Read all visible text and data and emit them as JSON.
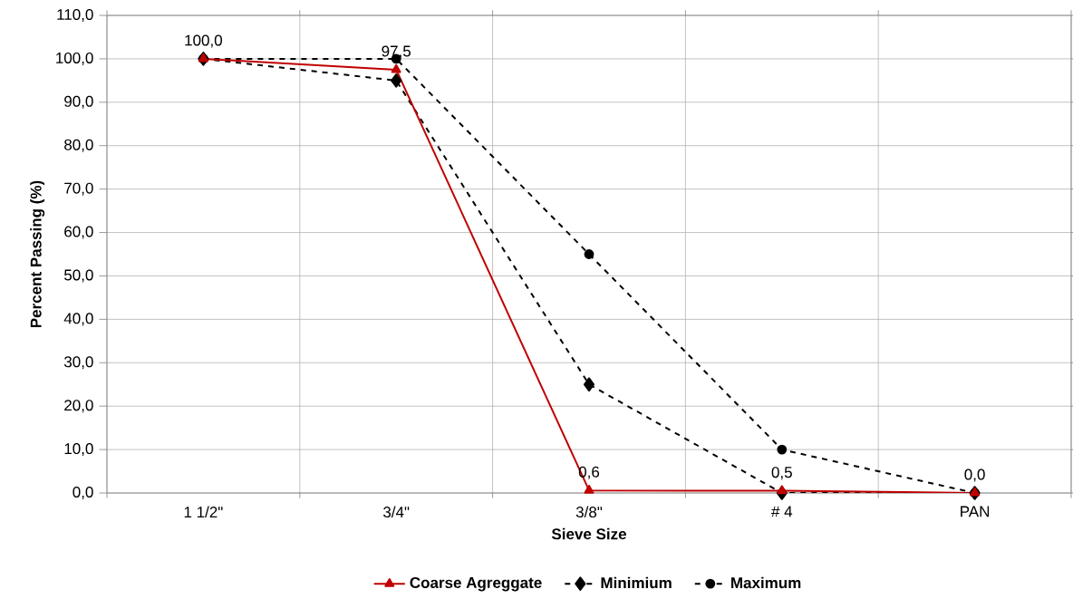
{
  "chart_data": {
    "type": "line",
    "xlabel": "Sieve Size",
    "ylabel": "Percent Passing (%)",
    "categories": [
      "1 1/2\"",
      "3/4\"",
      "3/8\"",
      "# 4",
      "PAN"
    ],
    "series": [
      {
        "name": "Coarse Agreggate",
        "color": "#c00000",
        "values": [
          100.0,
          97.5,
          0.6,
          0.5,
          0.0
        ],
        "value_labels": [
          "100,0",
          "97,5",
          "0,6",
          "0,5",
          "0,0"
        ],
        "marker": "triangle",
        "line_style": "solid"
      },
      {
        "name": "Minimium",
        "color": "#000000",
        "values": [
          100,
          95,
          25,
          0,
          0
        ],
        "marker": "diamond",
        "line_style": "dashed"
      },
      {
        "name": "Maximum",
        "color": "#000000",
        "values": [
          100,
          100,
          55,
          10,
          0
        ],
        "marker": "circle",
        "line_style": "dashed"
      }
    ],
    "ylim": [
      0,
      110
    ],
    "yticks": [
      {
        "value": 0,
        "label": "0,0"
      },
      {
        "value": 10,
        "label": "10,0"
      },
      {
        "value": 20,
        "label": "20,0"
      },
      {
        "value": 30,
        "label": "30,0"
      },
      {
        "value": 40,
        "label": "40,0"
      },
      {
        "value": 50,
        "label": "50,0"
      },
      {
        "value": 60,
        "label": "60,0"
      },
      {
        "value": 70,
        "label": "70,0"
      },
      {
        "value": 80,
        "label": "80,0"
      },
      {
        "value": 90,
        "label": "90,0"
      },
      {
        "value": 100,
        "label": "100,0"
      },
      {
        "value": 110,
        "label": "110,0"
      }
    ],
    "grid": true,
    "legend": "bottom"
  }
}
